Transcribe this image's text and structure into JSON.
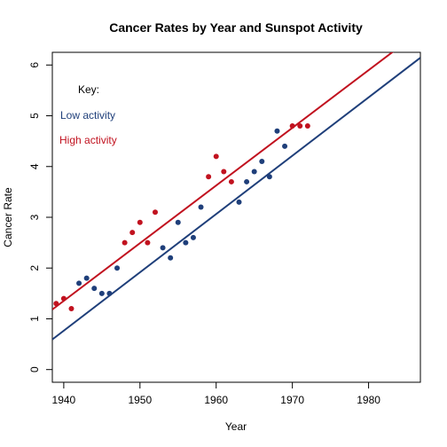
{
  "chart_data": {
    "type": "scatter",
    "title": "Cancer Rates by Year and Sunspot Activity",
    "xlabel": "Year",
    "ylabel": "Cancer Rate",
    "xlim": [
      1938.5,
      1986.8
    ],
    "ylim": [
      -0.25,
      6.25
    ],
    "x_ticks": [
      1940,
      1950,
      1960,
      1970,
      1980
    ],
    "y_ticks": [
      0,
      1,
      2,
      3,
      4,
      5,
      6
    ],
    "grid": false,
    "legend": {
      "title": "Key:",
      "position": "top-left",
      "entries": [
        "Low activity",
        "High activity"
      ]
    },
    "series": [
      {
        "name": "Low activity",
        "color": "#1f3f7a",
        "points": [
          [
            1942,
            1.7
          ],
          [
            1943,
            1.8
          ],
          [
            1944,
            1.6
          ],
          [
            1945,
            1.5
          ],
          [
            1946,
            1.5
          ],
          [
            1947,
            2.0
          ],
          [
            1953,
            2.4
          ],
          [
            1954,
            2.2
          ],
          [
            1955,
            2.9
          ],
          [
            1956,
            2.5
          ],
          [
            1957,
            2.6
          ],
          [
            1958,
            3.2
          ],
          [
            1963,
            3.3
          ],
          [
            1964,
            3.7
          ],
          [
            1965,
            3.9
          ],
          [
            1966,
            4.1
          ],
          [
            1967,
            3.8
          ],
          [
            1968,
            4.7
          ],
          [
            1969,
            4.4
          ]
        ],
        "fit": {
          "slope": 0.1149,
          "intercept": -222.14
        }
      },
      {
        "name": "High activity",
        "color": "#c1121f",
        "points": [
          [
            1939,
            1.3
          ],
          [
            1940,
            1.4
          ],
          [
            1941,
            1.2
          ],
          [
            1948,
            2.5
          ],
          [
            1949,
            2.7
          ],
          [
            1950,
            2.9
          ],
          [
            1951,
            2.5
          ],
          [
            1952,
            3.1
          ],
          [
            1959,
            3.8
          ],
          [
            1960,
            4.2
          ],
          [
            1961,
            3.9
          ],
          [
            1962,
            3.7
          ],
          [
            1970,
            4.8
          ],
          [
            1971,
            4.8
          ],
          [
            1972,
            4.8
          ]
        ],
        "fit": {
          "slope": 0.1136,
          "intercept": -219.03
        }
      }
    ]
  }
}
